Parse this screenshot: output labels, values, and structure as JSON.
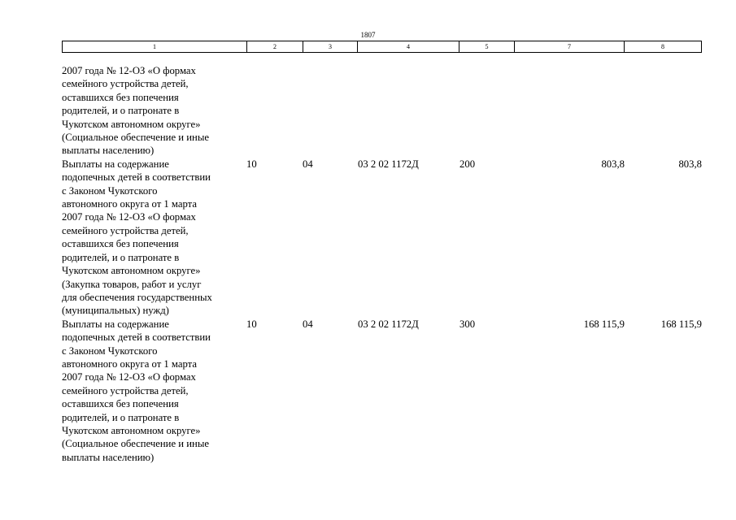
{
  "page_number": "1807",
  "header_columns": [
    "1",
    "2",
    "3",
    "4",
    "5",
    "7",
    "8"
  ],
  "rows": [
    {
      "description": "2007 года № 12-ОЗ «О формах\nсемейного устройства детей,\nоставшихся без попечения\nродителей, и о патронате в\nЧукотском автономном округе»\n(Социальное обеспечение и иные\nвыплаты населению)",
      "rz": "",
      "prz": "",
      "csr": "",
      "vr": "",
      "value7": "",
      "value8": ""
    },
    {
      "description": "Выплаты на содержание\nподопечных детей в соответствии\nс Законом Чукотского\nавтономного округа от 1 марта\n2007 года № 12-ОЗ «О формах\nсемейного устройства детей,\nоставшихся без попечения\nродителей, и о патронате в\nЧукотском автономном округе»\n(Закупка товаров, работ и услуг\nдля обеспечения государственных\n(муниципальных) нужд)",
      "rz": "10",
      "prz": "04",
      "csr": "03 2 02 1172Д",
      "vr": "200",
      "value7": "803,8",
      "value8": "803,8"
    },
    {
      "description": "Выплаты на содержание\nподопечных детей в соответствии\nс Законом Чукотского\nавтономного округа от 1 марта\n2007 года № 12-ОЗ «О формах\nсемейного устройства детей,\nоставшихся без попечения\nродителей, и о патронате в\nЧукотском автономном округе»\n(Социальное обеспечение и иные\nвыплаты населению)",
      "rz": "10",
      "prz": "04",
      "csr": "03 2 02 1172Д",
      "vr": "300",
      "value7": "168 115,9",
      "value8": "168 115,9"
    }
  ]
}
